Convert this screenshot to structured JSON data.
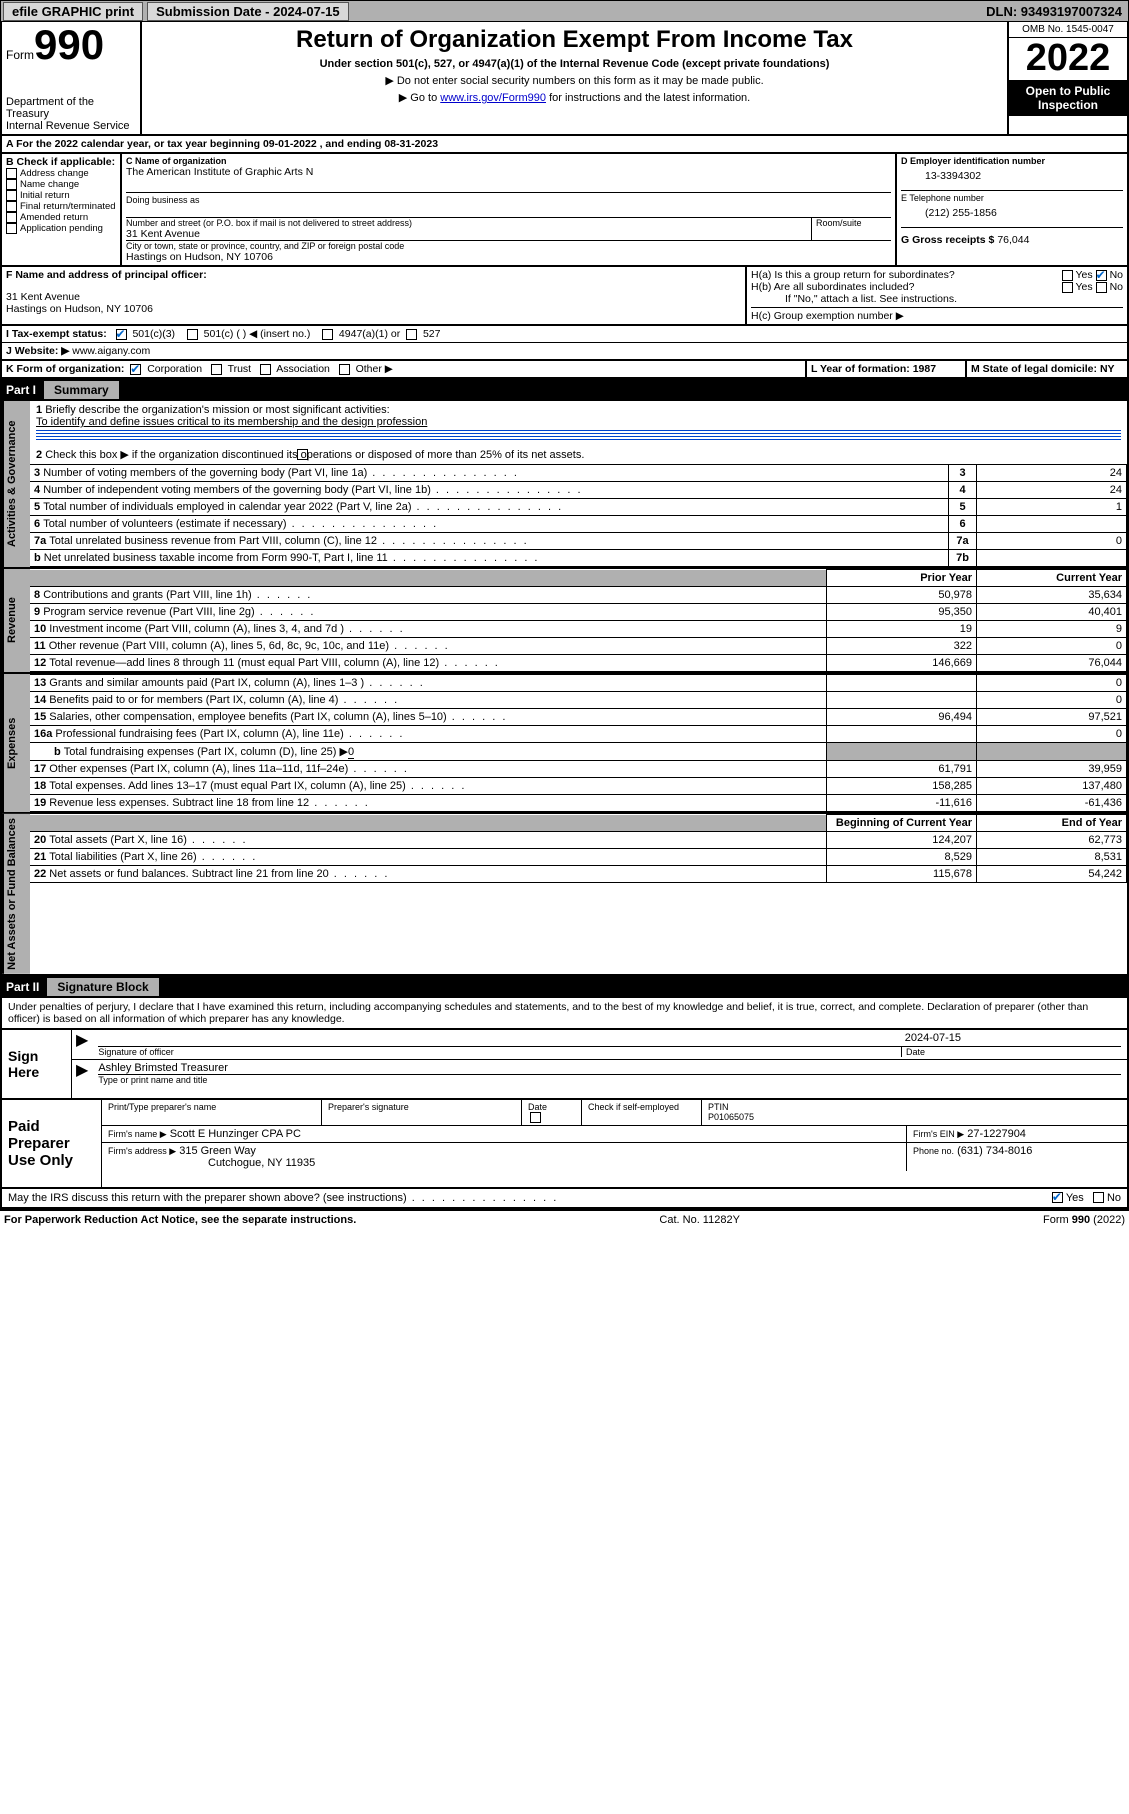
{
  "topbar": {
    "efile": "efile GRAPHIC print",
    "submission_label": "Submission Date - 2024-07-15",
    "dln_label": "DLN: 93493197007324"
  },
  "header": {
    "form_word": "Form",
    "form_no": "990",
    "dept": "Department of the Treasury",
    "irs": "Internal Revenue Service",
    "title": "Return of Organization Exempt From Income Tax",
    "sub": "Under section 501(c), 527, or 4947(a)(1) of the Internal Revenue Code (except private foundations)",
    "note1": "▶ Do not enter social security numbers on this form as it may be made public.",
    "note2_pre": "▶ Go to ",
    "note2_link": "www.irs.gov/Form990",
    "note2_post": " for instructions and the latest information.",
    "omb": "OMB No. 1545-0047",
    "year": "2022",
    "inspect": "Open to Public Inspection"
  },
  "A": {
    "text": "A For the 2022 calendar year, or tax year beginning 09-01-2022   , and ending 08-31-2023"
  },
  "B": {
    "label": "B Check if applicable:",
    "items": [
      "Address change",
      "Name change",
      "Initial return",
      "Final return/terminated",
      "Amended return",
      "Application pending"
    ]
  },
  "C": {
    "name_label": "C Name of organization",
    "name": "The American Institute of Graphic Arts N",
    "dba_label": "Doing business as",
    "addr_label": "Number and street (or P.O. box if mail is not delivered to street address)",
    "room_label": "Room/suite",
    "addr": "31 Kent Avenue",
    "city_label": "City or town, state or province, country, and ZIP or foreign postal code",
    "city": "Hastings on Hudson, NY  10706"
  },
  "D": {
    "label": "D Employer identification number",
    "val": "13-3394302"
  },
  "E": {
    "label": "E Telephone number",
    "val": "(212) 255-1856"
  },
  "G": {
    "label": "G Gross receipts $",
    "val": "76,044"
  },
  "F": {
    "label": "F Name and address of principal officer:",
    "addr1": "31 Kent Avenue",
    "addr2": "Hastings on Hudson, NY  10706"
  },
  "H": {
    "a": "H(a)  Is this a group return for subordinates?",
    "b": "H(b)  Are all subordinates included?",
    "b_note": "If \"No,\" attach a list. See instructions.",
    "c": "H(c)  Group exemption number ▶",
    "yes": "Yes",
    "no": "No"
  },
  "I": {
    "label": "I   Tax-exempt status:",
    "opt1": "501(c)(3)",
    "opt2": "501(c) (   ) ◀ (insert no.)",
    "opt3": "4947(a)(1) or",
    "opt4": "527"
  },
  "J": {
    "label": "J   Website: ▶",
    "val": "www.aigany.com"
  },
  "K": {
    "label": "K Form of organization:",
    "opts": [
      "Corporation",
      "Trust",
      "Association",
      "Other ▶"
    ]
  },
  "L": {
    "label": "L Year of formation: 1987"
  },
  "M": {
    "label": "M State of legal domicile: NY"
  },
  "part1": {
    "bar_label": "Part I",
    "bar_title": "Summary",
    "l1": "Briefly describe the organization's mission or most significant activities:",
    "l1_text": "To identify and define issues critical to its membership and the design profession",
    "l2": "Check this box ▶        if the organization discontinued its operations or disposed of more than 25% of its net assets.",
    "rows_gov": [
      {
        "n": "3",
        "t": "Number of voting members of the governing body (Part VI, line 1a)",
        "k": "3",
        "v": "24"
      },
      {
        "n": "4",
        "t": "Number of independent voting members of the governing body (Part VI, line 1b)",
        "k": "4",
        "v": "24"
      },
      {
        "n": "5",
        "t": "Total number of individuals employed in calendar year 2022 (Part V, line 2a)",
        "k": "5",
        "v": "1"
      },
      {
        "n": "6",
        "t": "Total number of volunteers (estimate if necessary)",
        "k": "6",
        "v": ""
      },
      {
        "n": "7a",
        "t": "Total unrelated business revenue from Part VIII, column (C), line 12",
        "k": "7a",
        "v": "0"
      },
      {
        "n": "b",
        "t": "Net unrelated business taxable income from Form 990-T, Part I, line 11",
        "k": "7b",
        "v": ""
      }
    ],
    "col_prior": "Prior Year",
    "col_current": "Current Year",
    "rows_rev": [
      {
        "n": "8",
        "t": "Contributions and grants (Part VIII, line 1h)",
        "p": "50,978",
        "c": "35,634"
      },
      {
        "n": "9",
        "t": "Program service revenue (Part VIII, line 2g)",
        "p": "95,350",
        "c": "40,401"
      },
      {
        "n": "10",
        "t": "Investment income (Part VIII, column (A), lines 3, 4, and 7d )",
        "p": "19",
        "c": "9"
      },
      {
        "n": "11",
        "t": "Other revenue (Part VIII, column (A), lines 5, 6d, 8c, 9c, 10c, and 11e)",
        "p": "322",
        "c": "0"
      },
      {
        "n": "12",
        "t": "Total revenue—add lines 8 through 11 (must equal Part VIII, column (A), line 12)",
        "p": "146,669",
        "c": "76,044"
      }
    ],
    "rows_exp": [
      {
        "n": "13",
        "t": "Grants and similar amounts paid (Part IX, column (A), lines 1–3 )",
        "p": "",
        "c": "0"
      },
      {
        "n": "14",
        "t": "Benefits paid to or for members (Part IX, column (A), line 4)",
        "p": "",
        "c": "0"
      },
      {
        "n": "15",
        "t": "Salaries, other compensation, employee benefits (Part IX, column (A), lines 5–10)",
        "p": "96,494",
        "c": "97,521"
      },
      {
        "n": "16a",
        "t": "Professional fundraising fees (Part IX, column (A), line 11e)",
        "p": "",
        "c": "0"
      }
    ],
    "l16b": "Total fundraising expenses (Part IX, column (D), line 25) ▶",
    "l16b_val": "0",
    "rows_exp2": [
      {
        "n": "17",
        "t": "Other expenses (Part IX, column (A), lines 11a–11d, 11f–24e)",
        "p": "61,791",
        "c": "39,959"
      },
      {
        "n": "18",
        "t": "Total expenses. Add lines 13–17 (must equal Part IX, column (A), line 25)",
        "p": "158,285",
        "c": "137,480"
      },
      {
        "n": "19",
        "t": "Revenue less expenses. Subtract line 18 from line 12",
        "p": "-11,616",
        "c": "-61,436"
      }
    ],
    "col_begin": "Beginning of Current Year",
    "col_end": "End of Year",
    "rows_net": [
      {
        "n": "20",
        "t": "Total assets (Part X, line 16)",
        "p": "124,207",
        "c": "62,773"
      },
      {
        "n": "21",
        "t": "Total liabilities (Part X, line 26)",
        "p": "8,529",
        "c": "8,531"
      },
      {
        "n": "22",
        "t": "Net assets or fund balances. Subtract line 21 from line 20",
        "p": "115,678",
        "c": "54,242"
      }
    ],
    "side_gov": "Activities & Governance",
    "side_rev": "Revenue",
    "side_exp": "Expenses",
    "side_net": "Net Assets or Fund Balances"
  },
  "part2": {
    "bar_label": "Part II",
    "bar_title": "Signature Block",
    "decl": "Under penalties of perjury, I declare that I have examined this return, including accompanying schedules and statements, and to the best of my knowledge and belief, it is true, correct, and complete. Declaration of preparer (other than officer) is based on all information of which preparer has any knowledge.",
    "sign_here": "Sign Here",
    "sig_officer": "Signature of officer",
    "date_label": "Date",
    "date_val": "2024-07-15",
    "name_title": "Ashley Brimsted Treasurer",
    "name_label": "Type or print name and title",
    "paid": "Paid Preparer Use Only",
    "pt_name": "Print/Type preparer's name",
    "pt_sig": "Preparer's signature",
    "pt_date": "Date",
    "pt_check": "Check         if self-employed",
    "pt_ptin_l": "PTIN",
    "pt_ptin": "P01065075",
    "firm_name_l": "Firm's name    ▶",
    "firm_name": "Scott E Hunzinger CPA PC",
    "firm_ein_l": "Firm's EIN ▶",
    "firm_ein": "27-1227904",
    "firm_addr_l": "Firm's address ▶",
    "firm_addr1": "315 Green Way",
    "firm_addr2": "Cutchogue, NY  11935",
    "firm_ph_l": "Phone no.",
    "firm_ph": "(631) 734-8016",
    "may_irs": "May the IRS discuss this return with the preparer shown above? (see instructions)",
    "yes": "Yes",
    "no": "No"
  },
  "footer": {
    "left": "For Paperwork Reduction Act Notice, see the separate instructions.",
    "mid": "Cat. No. 11282Y",
    "right": "Form 990 (2022)"
  }
}
